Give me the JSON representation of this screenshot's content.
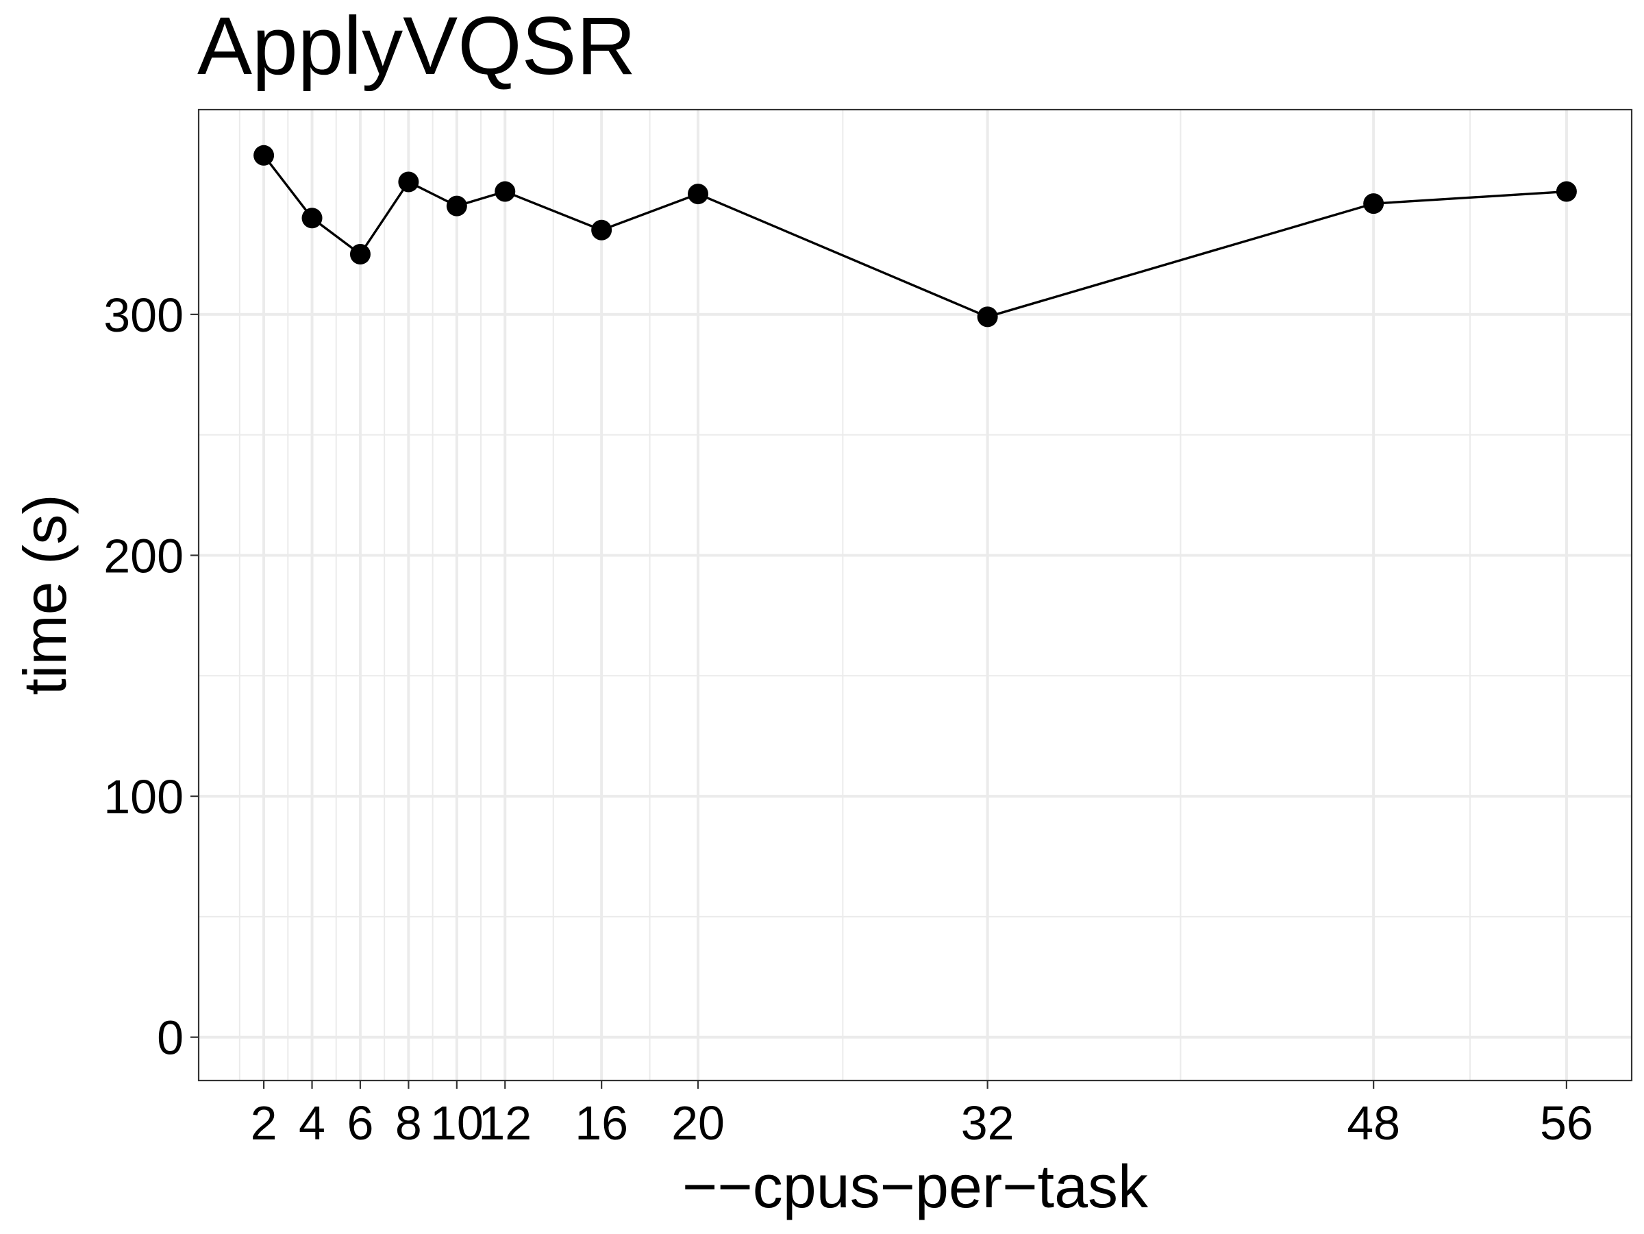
{
  "chart_data": {
    "type": "line",
    "title": "ApplyVQSR",
    "xlabel": "−−cpus−per−task",
    "ylabel": "time (s)",
    "x": [
      2,
      4,
      6,
      8,
      10,
      12,
      16,
      20,
      32,
      48,
      56
    ],
    "series": [
      {
        "values": [
          366,
          340,
          325,
          355,
          345,
          351,
          335,
          350,
          299,
          346,
          351
        ]
      }
    ],
    "xticks": [
      2,
      4,
      6,
      8,
      10,
      12,
      16,
      20,
      32,
      48,
      56
    ],
    "xtick_labels": [
      "2",
      "4",
      "6",
      "8",
      "10",
      "12",
      "16",
      "20",
      "32",
      "48",
      "56"
    ],
    "yticks": [
      0,
      100,
      200,
      300
    ],
    "ytick_labels": [
      "0",
      "100",
      "200",
      "300"
    ],
    "xlim": [
      -0.7,
      58.7
    ],
    "ylim": [
      -18,
      385
    ],
    "grid": true,
    "legend": "none",
    "colors": {
      "line": "#000000",
      "point": "#000000",
      "grid": "#ebebeb",
      "border": "#333333"
    }
  }
}
